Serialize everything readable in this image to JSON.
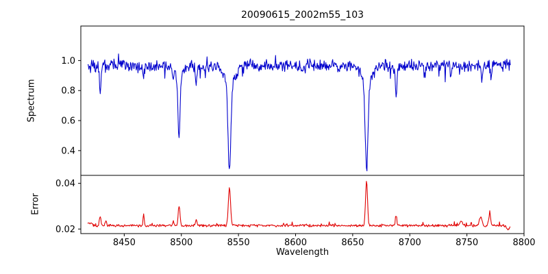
{
  "title": "20090615_2002m55_103",
  "chart_data": {
    "type": "line",
    "title": "20090615_2002m55_103",
    "xlabel": "Wavelength",
    "xlim": [
      8412,
      8800
    ],
    "x_ticks": [
      8450,
      8500,
      8550,
      8600,
      8650,
      8700,
      8750,
      8800
    ],
    "x_range": [
      8418,
      8788
    ],
    "x_step": 0.5,
    "seed": 20090615,
    "seed_error": 20020055,
    "legend": "none",
    "grid": false,
    "panels": [
      {
        "name": "spectrum",
        "ylabel": "Spectrum",
        "color": "#0000cd",
        "ylim": [
          0.235,
          1.23
        ],
        "y_ticks": [
          0.4,
          0.6,
          0.8,
          1.0
        ],
        "tick_decimals": 1,
        "continuum": 0.965,
        "noise_amplitude": 0.05,
        "absorption_lines": [
          {
            "center": 8429,
            "depth": 0.17,
            "width": 0.9
          },
          {
            "center": 8467,
            "depth": 0.09,
            "width": 0.8
          },
          {
            "center": 8493,
            "depth": 0.06,
            "width": 0.7
          },
          {
            "center": 8498.02,
            "depth": 0.42,
            "width": 1.3,
            "wing_depth": 0.06,
            "wing_width": 5
          },
          {
            "center": 8513,
            "depth": 0.14,
            "width": 1.0
          },
          {
            "center": 8542.09,
            "depth": 0.58,
            "width": 1.8,
            "wing_depth": 0.11,
            "wing_width": 7
          },
          {
            "center": 8662.14,
            "depth": 0.58,
            "width": 1.7,
            "wing_depth": 0.1,
            "wing_width": 6.5
          },
          {
            "center": 8688,
            "depth": 0.2,
            "width": 1.0
          },
          {
            "center": 8713,
            "depth": 0.06,
            "width": 0.8
          },
          {
            "center": 8736,
            "depth": 0.07,
            "width": 0.9
          },
          {
            "center": 8763,
            "depth": 0.09,
            "width": 1.0
          },
          {
            "center": 8771,
            "depth": 0.08,
            "width": 0.9
          }
        ]
      },
      {
        "name": "error",
        "ylabel": "Error",
        "color": "#e00000",
        "ylim": [
          0.018,
          0.0435
        ],
        "y_ticks": [
          0.02,
          0.04
        ],
        "tick_decimals": 2,
        "baseline": 0.0215,
        "noise_amplitude": 0.0007,
        "spikes": [
          {
            "center": 8419,
            "height": 0.0013,
            "width": 3
          },
          {
            "center": 8429,
            "height": 0.004,
            "width": 0.9
          },
          {
            "center": 8434,
            "height": 0.0022,
            "width": 0.8
          },
          {
            "center": 8467,
            "height": 0.0048,
            "width": 0.7
          },
          {
            "center": 8493,
            "height": 0.0018,
            "width": 0.7
          },
          {
            "center": 8498.02,
            "height": 0.0085,
            "width": 1.1
          },
          {
            "center": 8513,
            "height": 0.0022,
            "width": 0.9
          },
          {
            "center": 8542.09,
            "height": 0.0165,
            "width": 1.4
          },
          {
            "center": 8662.14,
            "height": 0.0195,
            "width": 1.2
          },
          {
            "center": 8688,
            "height": 0.0045,
            "width": 0.9
          },
          {
            "center": 8745,
            "height": 0.0018,
            "width": 1.5
          },
          {
            "center": 8762,
            "height": 0.0038,
            "width": 1.6
          },
          {
            "center": 8770,
            "height": 0.005,
            "width": 1.2
          },
          {
            "center": 8786,
            "height": -0.0015,
            "width": 2
          }
        ]
      }
    ]
  }
}
